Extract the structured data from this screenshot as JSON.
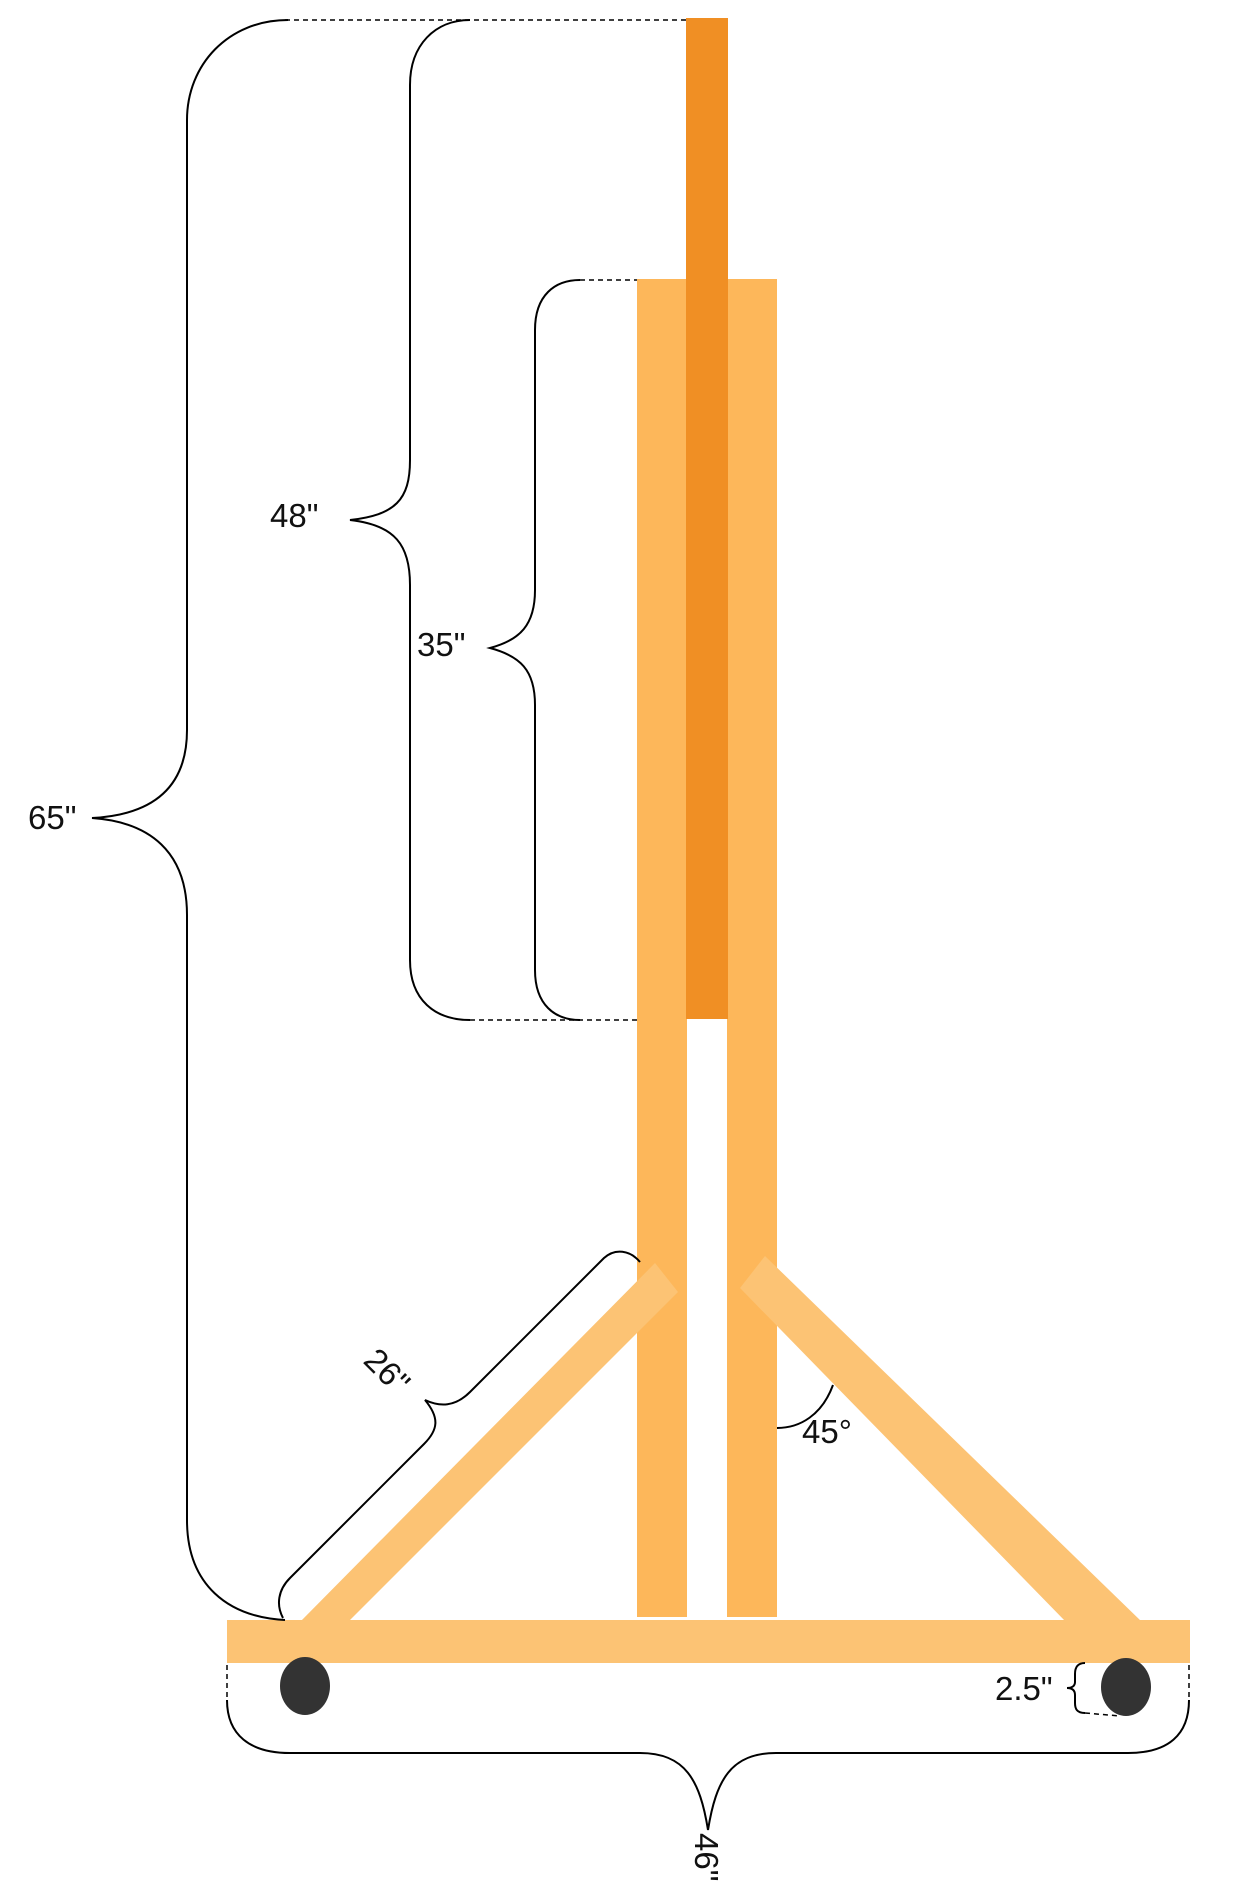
{
  "diagram": {
    "colors": {
      "upright": "#FDB75A",
      "mast": "#F08F24",
      "brace_leg": "#FCC374",
      "base": "#FCC374",
      "wheel": "#333333",
      "line": "#000000"
    },
    "dimensions": {
      "total_height": "65\"",
      "mast_height": "48\"",
      "upright_height": "35\"",
      "brace_length": "26\"",
      "brace_angle": "45°",
      "wheel_offset": "2.5\"",
      "base_width": "46\""
    }
  }
}
